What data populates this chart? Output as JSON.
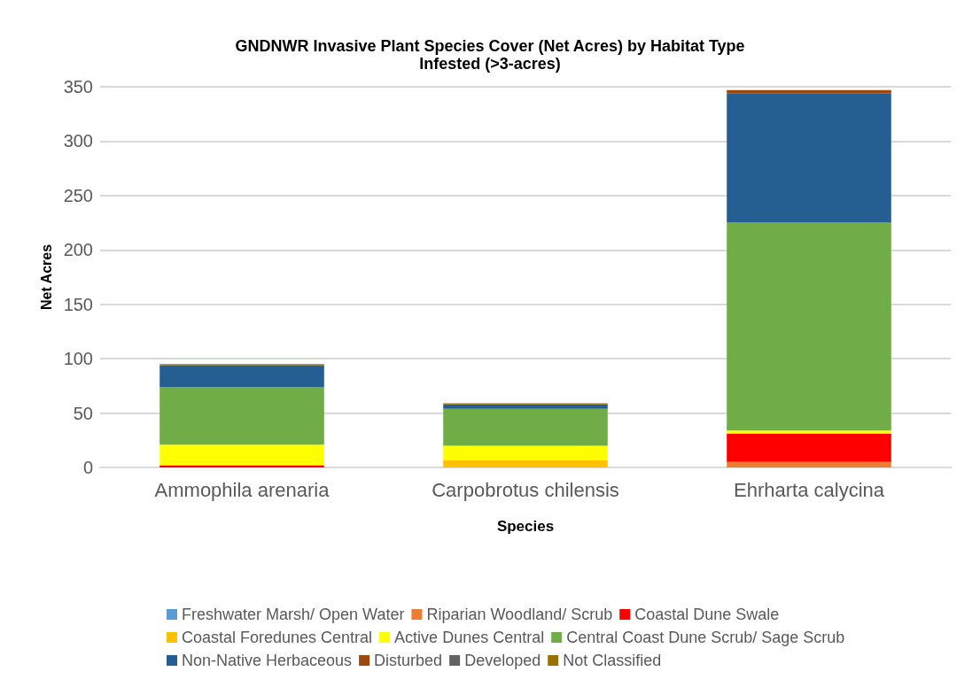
{
  "chart_data": {
    "type": "bar",
    "stacked": true,
    "title": "GNDNWR Invasive Plant Species Cover (Net Acres) by Habitat Type",
    "subtitle": "Infested (>3-acres)",
    "xlabel": "Species",
    "ylabel": "Net Acres",
    "categories": [
      "Ammophila arenaria",
      "Carpobrotus chilensis",
      "Ehrharta calycina"
    ],
    "series": [
      {
        "name": "Freshwater Marsh/ Open Water",
        "color": "#5b9bd5",
        "values": [
          0,
          0,
          0
        ]
      },
      {
        "name": "Riparian Woodland/ Scrub",
        "color": "#ed7d31",
        "values": [
          0,
          0,
          5
        ]
      },
      {
        "name": "Coastal Dune Swale",
        "color": "#ff0000",
        "values": [
          2,
          0,
          26
        ]
      },
      {
        "name": "Coastal Foredunes Central",
        "color": "#ffc000",
        "values": [
          0,
          7,
          0
        ]
      },
      {
        "name": "Active Dunes Central",
        "color": "#ffff00",
        "values": [
          19,
          13,
          3
        ]
      },
      {
        "name": "Central Coast Dune Scrub/ Sage Scrub",
        "color": "#70ad47",
        "values": [
          53,
          34,
          191
        ]
      },
      {
        "name": "Non-Native Herbaceous",
        "color": "#255e91",
        "values": [
          20,
          4,
          119
        ]
      },
      {
        "name": "Disturbed",
        "color": "#9e480e",
        "values": [
          0,
          0,
          3
        ]
      },
      {
        "name": "Developed",
        "color": "#636363",
        "values": [
          0,
          0,
          0
        ]
      },
      {
        "name": "Not Classified",
        "color": "#997300",
        "values": [
          1,
          1,
          0
        ]
      }
    ],
    "ylim": [
      0,
      350
    ],
    "yticks": [
      0,
      50,
      100,
      150,
      200,
      250,
      300,
      350
    ],
    "grid": "y",
    "legend": "bottom"
  }
}
